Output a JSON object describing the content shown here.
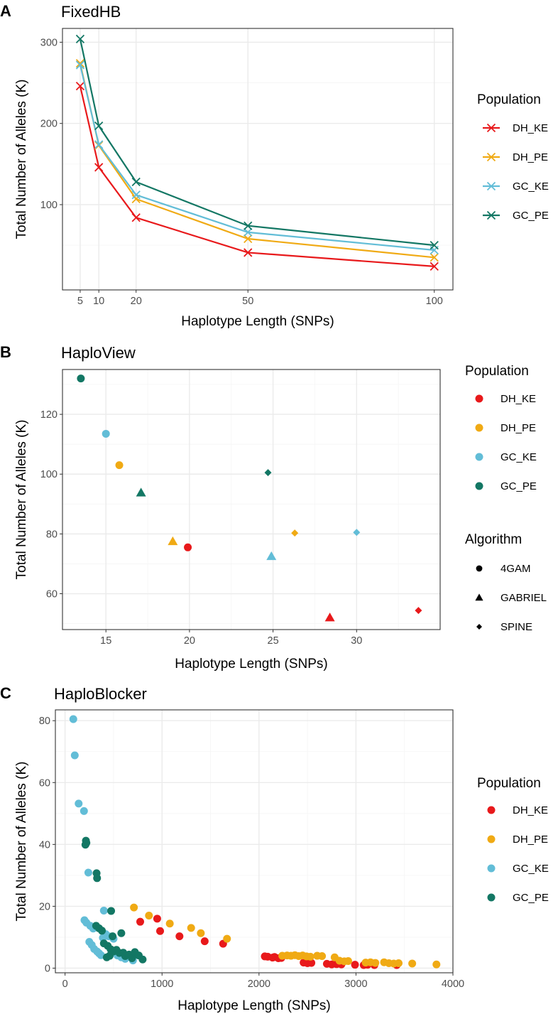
{
  "colors": {
    "DH_KE": "#e8191b",
    "DH_PE": "#f0aa14",
    "GC_KE": "#62bdd7",
    "GC_PE": "#137764",
    "grid_major": "#ebebeb",
    "grid_minor": "#f5f5f5",
    "panel_border": "#333333",
    "tick_text": "#4d4d4d"
  },
  "chart_data": [
    {
      "id": "A",
      "letter": "A",
      "type": "line",
      "title": "FixedHB",
      "xlabel": "Haplotype Length (SNPs)",
      "ylabel": "Total Number of Alleles (K)",
      "xlim": [
        0.25,
        105
      ],
      "ylim": [
        -5,
        317
      ],
      "xticks": [
        5,
        10,
        20,
        50,
        100
      ],
      "xtick_labels": [
        "5",
        "10",
        "20",
        "50",
        "100"
      ],
      "xminor": [],
      "yticks": [
        100,
        200,
        300
      ],
      "ytick_labels": [
        "100",
        "200",
        "300"
      ],
      "yminor": [
        50,
        150,
        250
      ],
      "legend": {
        "title": "Population",
        "entries": [
          "DH_KE",
          "DH_PE",
          "GC_KE",
          "GC_PE"
        ],
        "position": "right"
      },
      "x": [
        5,
        10,
        20,
        50,
        100
      ],
      "series": [
        {
          "name": "DH_KE",
          "values": [
            246,
            146,
            84,
            41,
            24
          ]
        },
        {
          "name": "DH_PE",
          "values": [
            274,
            173,
            107,
            58,
            35
          ]
        },
        {
          "name": "GC_KE",
          "values": [
            272,
            174,
            112,
            66,
            44
          ]
        },
        {
          "name": "GC_PE",
          "values": [
            304,
            197,
            128,
            74,
            50
          ]
        }
      ]
    },
    {
      "id": "B",
      "letter": "B",
      "type": "scatter",
      "title": "HaploView",
      "xlabel": "Haplotype Length (SNPs)",
      "ylabel": "Total Number of Alleles (K)",
      "xlim": [
        12.4,
        35
      ],
      "ylim": [
        48,
        135
      ],
      "xticks": [
        15,
        20,
        25,
        30
      ],
      "xtick_labels": [
        "15",
        "20",
        "25",
        "30"
      ],
      "xminor": [
        12.5,
        17.5,
        22.5,
        27.5,
        32.5
      ],
      "yticks": [
        60,
        80,
        100,
        120
      ],
      "ytick_labels": [
        "60",
        "80",
        "100",
        "120"
      ],
      "yminor": [
        50,
        70,
        90,
        110,
        130
      ],
      "legend": {
        "title": "Population",
        "entries": [
          "DH_KE",
          "DH_PE",
          "GC_KE",
          "GC_PE"
        ],
        "position": "right",
        "shape_title": "Algorithm",
        "shape_entries": [
          {
            "label": "4GAM",
            "shape": "circle"
          },
          {
            "label": "GABRIEL",
            "shape": "triangle"
          },
          {
            "label": "SPINE",
            "shape": "diamond"
          }
        ]
      },
      "points": [
        {
          "x": 13.5,
          "y": 132,
          "pop": "GC_PE",
          "shape": "circle"
        },
        {
          "x": 15.0,
          "y": 113.5,
          "pop": "GC_KE",
          "shape": "circle"
        },
        {
          "x": 15.8,
          "y": 103,
          "pop": "DH_PE",
          "shape": "circle"
        },
        {
          "x": 17.1,
          "y": 93.8,
          "pop": "GC_PE",
          "shape": "triangle"
        },
        {
          "x": 19.0,
          "y": 77.5,
          "pop": "DH_PE",
          "shape": "triangle"
        },
        {
          "x": 19.9,
          "y": 75.5,
          "pop": "DH_KE",
          "shape": "circle"
        },
        {
          "x": 24.7,
          "y": 100.5,
          "pop": "GC_PE",
          "shape": "diamond"
        },
        {
          "x": 24.9,
          "y": 72.5,
          "pop": "GC_KE",
          "shape": "triangle"
        },
        {
          "x": 26.3,
          "y": 80.3,
          "pop": "DH_PE",
          "shape": "diamond"
        },
        {
          "x": 28.4,
          "y": 52,
          "pop": "DH_KE",
          "shape": "triangle"
        },
        {
          "x": 30.0,
          "y": 80.5,
          "pop": "GC_KE",
          "shape": "diamond"
        },
        {
          "x": 33.7,
          "y": 54.4,
          "pop": "DH_KE",
          "shape": "diamond"
        }
      ]
    },
    {
      "id": "C",
      "letter": "C",
      "type": "scatter",
      "title": "HaploBlocker",
      "xlabel": "Haplotype Length (SNPs)",
      "ylabel": "Total Number of Alleles (K)",
      "xlim": [
        -100,
        4000
      ],
      "ylim": [
        -1.5,
        83.5
      ],
      "xticks": [
        0,
        1000,
        2000,
        3000,
        4000
      ],
      "xtick_labels": [
        "0",
        "1000",
        "2000",
        "3000",
        "4000"
      ],
      "xminor": [
        500,
        1500,
        2500,
        3500
      ],
      "yticks": [
        0,
        20,
        40,
        60,
        80
      ],
      "ytick_labels": [
        "0",
        "20",
        "40",
        "60",
        "80"
      ],
      "yminor": [
        10,
        30,
        50,
        70
      ],
      "legend": {
        "title": "Population",
        "entries": [
          "DH_KE",
          "DH_PE",
          "GC_KE",
          "GC_PE"
        ],
        "position": "right"
      },
      "points": [
        {
          "x": 775,
          "y": 15,
          "pop": "DH_KE"
        },
        {
          "x": 950,
          "y": 16,
          "pop": "DH_KE"
        },
        {
          "x": 980,
          "y": 12,
          "pop": "DH_KE"
        },
        {
          "x": 1180,
          "y": 10.3,
          "pop": "DH_KE"
        },
        {
          "x": 1440,
          "y": 8.7,
          "pop": "DH_KE"
        },
        {
          "x": 1630,
          "y": 7.9,
          "pop": "DH_KE"
        },
        {
          "x": 2060,
          "y": 3.8,
          "pop": "DH_KE"
        },
        {
          "x": 2090,
          "y": 3.7,
          "pop": "DH_KE"
        },
        {
          "x": 2140,
          "y": 3.4,
          "pop": "DH_KE"
        },
        {
          "x": 2160,
          "y": 3.6,
          "pop": "DH_KE"
        },
        {
          "x": 2200,
          "y": 3.2,
          "pop": "DH_KE"
        },
        {
          "x": 2230,
          "y": 3.3,
          "pop": "DH_KE"
        },
        {
          "x": 2460,
          "y": 1.8,
          "pop": "DH_KE"
        },
        {
          "x": 2500,
          "y": 1.6,
          "pop": "DH_KE"
        },
        {
          "x": 2540,
          "y": 1.7,
          "pop": "DH_KE"
        },
        {
          "x": 2700,
          "y": 1.4,
          "pop": "DH_KE"
        },
        {
          "x": 2750,
          "y": 1.2,
          "pop": "DH_KE"
        },
        {
          "x": 2800,
          "y": 1.3,
          "pop": "DH_KE"
        },
        {
          "x": 2850,
          "y": 1.2,
          "pop": "DH_KE"
        },
        {
          "x": 2990,
          "y": 1.1,
          "pop": "DH_KE"
        },
        {
          "x": 3080,
          "y": 1.0,
          "pop": "DH_KE"
        },
        {
          "x": 3120,
          "y": 1.1,
          "pop": "DH_KE"
        },
        {
          "x": 3190,
          "y": 1.0,
          "pop": "DH_KE"
        },
        {
          "x": 3420,
          "y": 1.0,
          "pop": "DH_KE"
        },
        {
          "x": 710,
          "y": 19.6,
          "pop": "DH_PE"
        },
        {
          "x": 865,
          "y": 17,
          "pop": "DH_PE"
        },
        {
          "x": 1080,
          "y": 14.4,
          "pop": "DH_PE"
        },
        {
          "x": 1300,
          "y": 13,
          "pop": "DH_PE"
        },
        {
          "x": 1400,
          "y": 11.3,
          "pop": "DH_PE"
        },
        {
          "x": 1670,
          "y": 9.5,
          "pop": "DH_PE"
        },
        {
          "x": 2240,
          "y": 4.0,
          "pop": "DH_PE"
        },
        {
          "x": 2290,
          "y": 4.1,
          "pop": "DH_PE"
        },
        {
          "x": 2330,
          "y": 4.0,
          "pop": "DH_PE"
        },
        {
          "x": 2370,
          "y": 4.2,
          "pop": "DH_PE"
        },
        {
          "x": 2410,
          "y": 3.9,
          "pop": "DH_PE"
        },
        {
          "x": 2450,
          "y": 4.1,
          "pop": "DH_PE"
        },
        {
          "x": 2490,
          "y": 3.8,
          "pop": "DH_PE"
        },
        {
          "x": 2530,
          "y": 3.7,
          "pop": "DH_PE"
        },
        {
          "x": 2600,
          "y": 4.0,
          "pop": "DH_PE"
        },
        {
          "x": 2650,
          "y": 3.9,
          "pop": "DH_PE"
        },
        {
          "x": 2780,
          "y": 3.5,
          "pop": "DH_PE"
        },
        {
          "x": 2830,
          "y": 2.4,
          "pop": "DH_PE"
        },
        {
          "x": 2880,
          "y": 2.2,
          "pop": "DH_PE"
        },
        {
          "x": 2920,
          "y": 2.3,
          "pop": "DH_PE"
        },
        {
          "x": 3100,
          "y": 1.8,
          "pop": "DH_PE"
        },
        {
          "x": 3150,
          "y": 1.9,
          "pop": "DH_PE"
        },
        {
          "x": 3200,
          "y": 1.7,
          "pop": "DH_PE"
        },
        {
          "x": 3290,
          "y": 1.9,
          "pop": "DH_PE"
        },
        {
          "x": 3340,
          "y": 1.6,
          "pop": "DH_PE"
        },
        {
          "x": 3390,
          "y": 1.5,
          "pop": "DH_PE"
        },
        {
          "x": 3440,
          "y": 1.6,
          "pop": "DH_PE"
        },
        {
          "x": 3580,
          "y": 1.5,
          "pop": "DH_PE"
        },
        {
          "x": 3830,
          "y": 1.2,
          "pop": "DH_PE"
        },
        {
          "x": 85,
          "y": 80.5,
          "pop": "GC_KE"
        },
        {
          "x": 100,
          "y": 68.8,
          "pop": "GC_KE"
        },
        {
          "x": 140,
          "y": 53.2,
          "pop": "GC_KE"
        },
        {
          "x": 195,
          "y": 50.8,
          "pop": "GC_KE"
        },
        {
          "x": 240,
          "y": 30.9,
          "pop": "GC_KE"
        },
        {
          "x": 200,
          "y": 15.5,
          "pop": "GC_KE"
        },
        {
          "x": 220,
          "y": 14.7,
          "pop": "GC_KE"
        },
        {
          "x": 260,
          "y": 13.7,
          "pop": "GC_KE"
        },
        {
          "x": 290,
          "y": 12.8,
          "pop": "GC_KE"
        },
        {
          "x": 400,
          "y": 18.6,
          "pop": "GC_KE"
        },
        {
          "x": 250,
          "y": 8.5,
          "pop": "GC_KE"
        },
        {
          "x": 275,
          "y": 7.5,
          "pop": "GC_KE"
        },
        {
          "x": 300,
          "y": 6.2,
          "pop": "GC_KE"
        },
        {
          "x": 330,
          "y": 5.4,
          "pop": "GC_KE"
        },
        {
          "x": 350,
          "y": 4.8,
          "pop": "GC_KE"
        },
        {
          "x": 370,
          "y": 4.2,
          "pop": "GC_KE"
        },
        {
          "x": 390,
          "y": 9.8,
          "pop": "GC_KE"
        },
        {
          "x": 420,
          "y": 11,
          "pop": "GC_KE"
        },
        {
          "x": 450,
          "y": 10.3,
          "pop": "GC_KE"
        },
        {
          "x": 500,
          "y": 9.5,
          "pop": "GC_KE"
        },
        {
          "x": 540,
          "y": 4.1,
          "pop": "GC_KE"
        },
        {
          "x": 580,
          "y": 3.5,
          "pop": "GC_KE"
        },
        {
          "x": 620,
          "y": 3.0,
          "pop": "GC_KE"
        },
        {
          "x": 700,
          "y": 2.5,
          "pop": "GC_KE"
        },
        {
          "x": 210,
          "y": 39.9,
          "pop": "GC_PE"
        },
        {
          "x": 215,
          "y": 41.2,
          "pop": "GC_PE"
        },
        {
          "x": 220,
          "y": 40.5,
          "pop": "GC_PE"
        },
        {
          "x": 325,
          "y": 30.7,
          "pop": "GC_PE"
        },
        {
          "x": 330,
          "y": 29.1,
          "pop": "GC_PE"
        },
        {
          "x": 475,
          "y": 18.5,
          "pop": "GC_PE"
        },
        {
          "x": 320,
          "y": 13.7,
          "pop": "GC_PE"
        },
        {
          "x": 350,
          "y": 12.9,
          "pop": "GC_PE"
        },
        {
          "x": 380,
          "y": 12.1,
          "pop": "GC_PE"
        },
        {
          "x": 580,
          "y": 11.3,
          "pop": "GC_PE"
        },
        {
          "x": 490,
          "y": 10.3,
          "pop": "GC_PE"
        },
        {
          "x": 400,
          "y": 8.0,
          "pop": "GC_PE"
        },
        {
          "x": 440,
          "y": 7.2,
          "pop": "GC_PE"
        },
        {
          "x": 470,
          "y": 6.1,
          "pop": "GC_PE"
        },
        {
          "x": 500,
          "y": 5.4,
          "pop": "GC_PE"
        },
        {
          "x": 530,
          "y": 5.9,
          "pop": "GC_PE"
        },
        {
          "x": 560,
          "y": 4.9,
          "pop": "GC_PE"
        },
        {
          "x": 600,
          "y": 5.0,
          "pop": "GC_PE"
        },
        {
          "x": 620,
          "y": 3.9,
          "pop": "GC_PE"
        },
        {
          "x": 660,
          "y": 4.4,
          "pop": "GC_PE"
        },
        {
          "x": 690,
          "y": 3.2,
          "pop": "GC_PE"
        },
        {
          "x": 720,
          "y": 5.2,
          "pop": "GC_PE"
        },
        {
          "x": 760,
          "y": 4.1,
          "pop": "GC_PE"
        },
        {
          "x": 800,
          "y": 2.8,
          "pop": "GC_PE"
        },
        {
          "x": 430,
          "y": 3.5,
          "pop": "GC_PE"
        },
        {
          "x": 460,
          "y": 4.0,
          "pop": "GC_PE"
        }
      ]
    }
  ]
}
